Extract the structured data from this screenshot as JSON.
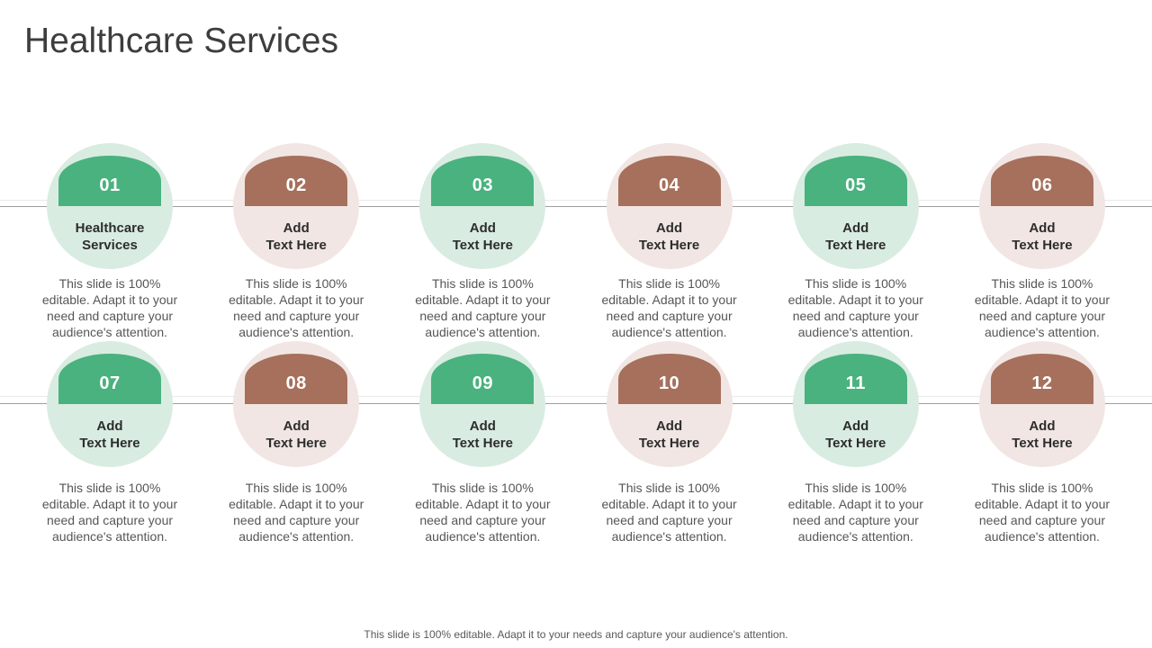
{
  "slide": {
    "title": "Healthcare Services",
    "footer": "This slide is 100% editable. Adapt it to your needs and capture your audience's attention.",
    "colors": {
      "green": "#49b27e",
      "green_light": "#d9ece1",
      "brown": "#a6705c",
      "brown_light": "#f1e6e3",
      "line": "#9e9e9e",
      "line_soft": "#e9e9e9"
    },
    "items": [
      {
        "number": "01",
        "label": "Healthcare\nServices",
        "theme": "green",
        "description": "This slide is 100%\neditable. Adapt it to your\nneed and capture your\naudience's attention."
      },
      {
        "number": "02",
        "label": "Add\nText Here",
        "theme": "brown",
        "description": "This slide is 100%\neditable. Adapt it to your\nneed and capture your\naudience's attention."
      },
      {
        "number": "03",
        "label": "Add\nText Here",
        "theme": "green",
        "description": "This slide is 100%\neditable. Adapt it to your\nneed and capture your\naudience's attention."
      },
      {
        "number": "04",
        "label": "Add\nText Here",
        "theme": "brown",
        "description": "This slide is 100%\neditable. Adapt it to your\nneed and capture your\naudience's attention."
      },
      {
        "number": "05",
        "label": "Add\nText Here",
        "theme": "green",
        "description": "This slide is 100%\neditable. Adapt it to your\nneed and capture your\naudience's attention."
      },
      {
        "number": "06",
        "label": "Add\nText Here",
        "theme": "brown",
        "description": "This slide is 100%\neditable. Adapt it to your\nneed and capture your\naudience's attention."
      },
      {
        "number": "07",
        "label": "Add\nText Here",
        "theme": "green",
        "description": "This slide is 100%\neditable. Adapt it to your\nneed and capture your\naudience's attention."
      },
      {
        "number": "08",
        "label": "Add\nText Here",
        "theme": "brown",
        "description": "This slide is 100%\neditable. Adapt it to your\nneed and capture your\naudience's attention."
      },
      {
        "number": "09",
        "label": "Add\nText Here",
        "theme": "green",
        "description": "This slide is 100%\neditable. Adapt it to your\nneed and capture your\naudience's attention."
      },
      {
        "number": "10",
        "label": "Add\nText Here",
        "theme": "brown",
        "description": "This slide is 100%\neditable. Adapt it to your\nneed and capture your\naudience's attention."
      },
      {
        "number": "11",
        "label": "Add\nText Here",
        "theme": "green",
        "description": "This slide is 100%\neditable. Adapt it to your\nneed and capture your\naudience's attention."
      },
      {
        "number": "12",
        "label": "Add\nText Here",
        "theme": "brown",
        "description": "This slide is 100%\neditable. Adapt it to your\nneed and capture your\naudience's attention."
      }
    ]
  }
}
